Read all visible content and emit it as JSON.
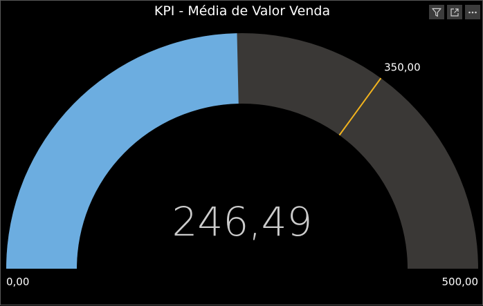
{
  "title": "KPI - Média de Valor Venda",
  "toolbar": {
    "filter_icon": "filter-icon",
    "focus_icon": "focus-mode-icon",
    "more_icon": "more-options-icon"
  },
  "chart_data": {
    "type": "gauge",
    "title": "KPI - Média de Valor Venda",
    "value": 246.49,
    "value_label": "246,49",
    "min": 0,
    "max": 500,
    "min_label": "0,00",
    "max_label": "500,00",
    "target": 350,
    "target_label": "350,00",
    "colors": {
      "fill": "#6cade0",
      "track": "#3a3836",
      "target": "#f2b41e",
      "value_text": "#cccccc"
    }
  }
}
